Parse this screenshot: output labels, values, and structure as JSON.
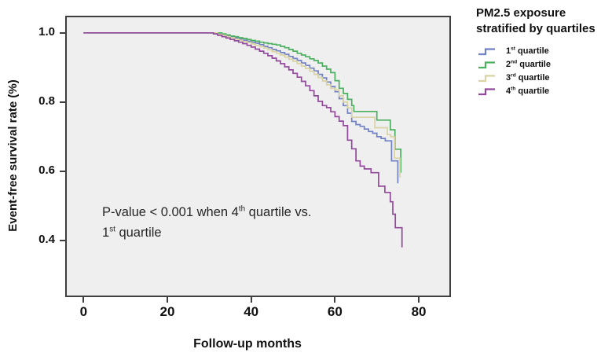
{
  "y_axis": {
    "label": "Event-free survival rate (%)",
    "ticks": [
      "1.0",
      "0.8",
      "0.6",
      "0.4"
    ],
    "tick_values": [
      1.0,
      0.8,
      0.6,
      0.4
    ]
  },
  "x_axis": {
    "label": "Follow-up months",
    "ticks": [
      "0",
      "20",
      "40",
      "60",
      "80"
    ],
    "tick_values": [
      0,
      20,
      40,
      60,
      80
    ]
  },
  "annotation": {
    "line1_pre": "P-value < 0.001 when 4",
    "line1_sup": "th",
    "line1_post": " quartile vs.",
    "line2_pre": "1",
    "line2_sup": "st",
    "line2_post": " quartile"
  },
  "legend": {
    "title_line1": "PM2.5 exposure",
    "title_line2": "stratified by quartiles",
    "items": [
      {
        "num": "1",
        "ordinal": "st",
        "label": "quartile",
        "color": "#7081C4"
      },
      {
        "num": "2",
        "ordinal": "nd",
        "label": "quartile",
        "color": "#4BB05F"
      },
      {
        "num": "3",
        "ordinal": "rd",
        "label": "quartile",
        "color": "#D9D3A3"
      },
      {
        "num": "4",
        "ordinal": "th",
        "label": "quartile",
        "color": "#93499B"
      }
    ]
  },
  "chart_data": {
    "type": "line",
    "subtype": "kaplan-meier-step",
    "title": "PM2.5 exposure stratified by quartiles",
    "xlabel": "Follow-up months",
    "ylabel": "Event-free survival rate (%)",
    "x_ticks": [
      0,
      20,
      40,
      60,
      80
    ],
    "y_ticks": [
      1.0,
      0.8,
      0.6,
      0.4
    ],
    "xlim_visible": [
      -4,
      87.3
    ],
    "ylim_visible": [
      0.241,
      1.045
    ],
    "grid": false,
    "legend_position": "right-outside",
    "plot_bg": "#EFEFF0",
    "border_color": "#3F3F3F",
    "annotation_text": "P-value < 0.001 when 4th quartile vs. 1st quartile",
    "series": [
      {
        "name": "1st quartile",
        "color": "#7081C4",
        "points": [
          [
            0,
            1
          ],
          [
            31,
            1
          ],
          [
            32,
            0.997
          ],
          [
            33,
            0.993
          ],
          [
            34,
            0.99
          ],
          [
            35,
            0.988
          ],
          [
            36,
            0.985
          ],
          [
            37,
            0.982
          ],
          [
            38,
            0.979
          ],
          [
            39,
            0.976
          ],
          [
            40,
            0.973
          ],
          [
            41,
            0.97
          ],
          [
            42,
            0.966
          ],
          [
            43,
            0.961
          ],
          [
            44,
            0.957
          ],
          [
            45,
            0.952
          ],
          [
            46,
            0.948
          ],
          [
            47,
            0.943
          ],
          [
            48,
            0.938
          ],
          [
            49,
            0.932
          ],
          [
            50,
            0.926
          ],
          [
            51,
            0.92
          ],
          [
            52,
            0.913
          ],
          [
            53,
            0.906
          ],
          [
            54,
            0.898
          ],
          [
            55,
            0.89
          ],
          [
            56,
            0.88
          ],
          [
            57,
            0.87
          ],
          [
            58,
            0.858
          ],
          [
            59,
            0.845
          ],
          [
            60,
            0.83
          ],
          [
            61,
            0.81
          ],
          [
            62,
            0.79
          ],
          [
            63,
            0.768
          ],
          [
            64,
            0.744
          ],
          [
            65,
            0.735
          ],
          [
            66,
            0.73
          ],
          [
            67,
            0.722
          ],
          [
            68,
            0.715
          ],
          [
            69,
            0.71
          ],
          [
            70,
            0.7
          ],
          [
            71,
            0.695
          ],
          [
            72,
            0.688
          ],
          [
            73.5,
            0.63
          ],
          [
            75,
            0.565
          ]
        ]
      },
      {
        "name": "2nd quartile",
        "color": "#4BB05F",
        "points": [
          [
            0,
            1
          ],
          [
            32,
            1
          ],
          [
            33,
            0.997
          ],
          [
            34,
            0.994
          ],
          [
            35,
            0.991
          ],
          [
            36,
            0.989
          ],
          [
            37,
            0.986
          ],
          [
            38,
            0.984
          ],
          [
            39,
            0.981
          ],
          [
            40,
            0.978
          ],
          [
            41,
            0.976
          ],
          [
            42,
            0.973
          ],
          [
            43,
            0.971
          ],
          [
            44,
            0.969
          ],
          [
            45,
            0.967
          ],
          [
            46,
            0.965
          ],
          [
            47,
            0.961
          ],
          [
            48,
            0.957
          ],
          [
            49,
            0.952
          ],
          [
            50,
            0.947
          ],
          [
            51,
            0.941
          ],
          [
            52,
            0.936
          ],
          [
            53,
            0.931
          ],
          [
            54,
            0.925
          ],
          [
            55,
            0.92
          ],
          [
            56,
            0.913
          ],
          [
            57,
            0.904
          ],
          [
            58,
            0.895
          ],
          [
            59,
            0.885
          ],
          [
            60,
            0.862
          ],
          [
            61,
            0.84
          ],
          [
            62,
            0.825
          ],
          [
            63,
            0.808
          ],
          [
            64,
            0.79
          ],
          [
            64.5,
            0.773
          ],
          [
            70,
            0.748
          ],
          [
            73.2,
            0.72
          ],
          [
            74.3,
            0.664
          ],
          [
            75.7,
            0.596
          ]
        ]
      },
      {
        "name": "3rd quartile",
        "color": "#D9D3A3",
        "points": [
          [
            0,
            1
          ],
          [
            31.5,
            1
          ],
          [
            32,
            0.996
          ],
          [
            33,
            0.993
          ],
          [
            34,
            0.989
          ],
          [
            35,
            0.986
          ],
          [
            36,
            0.982
          ],
          [
            37,
            0.979
          ],
          [
            38,
            0.975
          ],
          [
            39,
            0.972
          ],
          [
            40,
            0.968
          ],
          [
            41,
            0.964
          ],
          [
            42,
            0.96
          ],
          [
            43,
            0.956
          ],
          [
            44,
            0.951
          ],
          [
            45,
            0.946
          ],
          [
            46,
            0.941
          ],
          [
            47,
            0.936
          ],
          [
            48,
            0.93
          ],
          [
            49,
            0.924
          ],
          [
            50,
            0.918
          ],
          [
            51,
            0.911
          ],
          [
            52,
            0.904
          ],
          [
            53,
            0.897
          ],
          [
            54,
            0.889
          ],
          [
            55,
            0.88
          ],
          [
            56,
            0.871
          ],
          [
            57,
            0.861
          ],
          [
            58,
            0.85
          ],
          [
            59,
            0.84
          ],
          [
            60,
            0.835
          ],
          [
            61,
            0.818
          ],
          [
            62,
            0.8
          ],
          [
            63,
            0.783
          ],
          [
            64,
            0.756
          ],
          [
            69.5,
            0.726
          ],
          [
            72.5,
            0.706
          ],
          [
            73.3,
            0.7
          ],
          [
            74.2,
            0.638
          ],
          [
            75.5,
            0.582
          ]
        ]
      },
      {
        "name": "4th quartile",
        "color": "#93499B",
        "points": [
          [
            0,
            1
          ],
          [
            30,
            1
          ],
          [
            31,
            0.997
          ],
          [
            32,
            0.993
          ],
          [
            33,
            0.989
          ],
          [
            34,
            0.985
          ],
          [
            35,
            0.981
          ],
          [
            36,
            0.977
          ],
          [
            37,
            0.973
          ],
          [
            38,
            0.969
          ],
          [
            39,
            0.964
          ],
          [
            40,
            0.959
          ],
          [
            41,
            0.953
          ],
          [
            42,
            0.947
          ],
          [
            43,
            0.941
          ],
          [
            44,
            0.934
          ],
          [
            45,
            0.927
          ],
          [
            46,
            0.919
          ],
          [
            47,
            0.911
          ],
          [
            48,
            0.902
          ],
          [
            49,
            0.893
          ],
          [
            50,
            0.883
          ],
          [
            51,
            0.872
          ],
          [
            52,
            0.86
          ],
          [
            53,
            0.847
          ],
          [
            54,
            0.833
          ],
          [
            55,
            0.818
          ],
          [
            56,
            0.802
          ],
          [
            57,
            0.79
          ],
          [
            58,
            0.784
          ],
          [
            59,
            0.772
          ],
          [
            60,
            0.758
          ],
          [
            61,
            0.745
          ],
          [
            62,
            0.732
          ],
          [
            63,
            0.69
          ],
          [
            64,
            0.665
          ],
          [
            65,
            0.63
          ],
          [
            66,
            0.615
          ],
          [
            67,
            0.607
          ],
          [
            68.6,
            0.596
          ],
          [
            70.4,
            0.557
          ],
          [
            71.9,
            0.539
          ],
          [
            73.2,
            0.512
          ],
          [
            73.8,
            0.476
          ],
          [
            74.4,
            0.437
          ],
          [
            76,
            0.38
          ]
        ]
      }
    ]
  }
}
